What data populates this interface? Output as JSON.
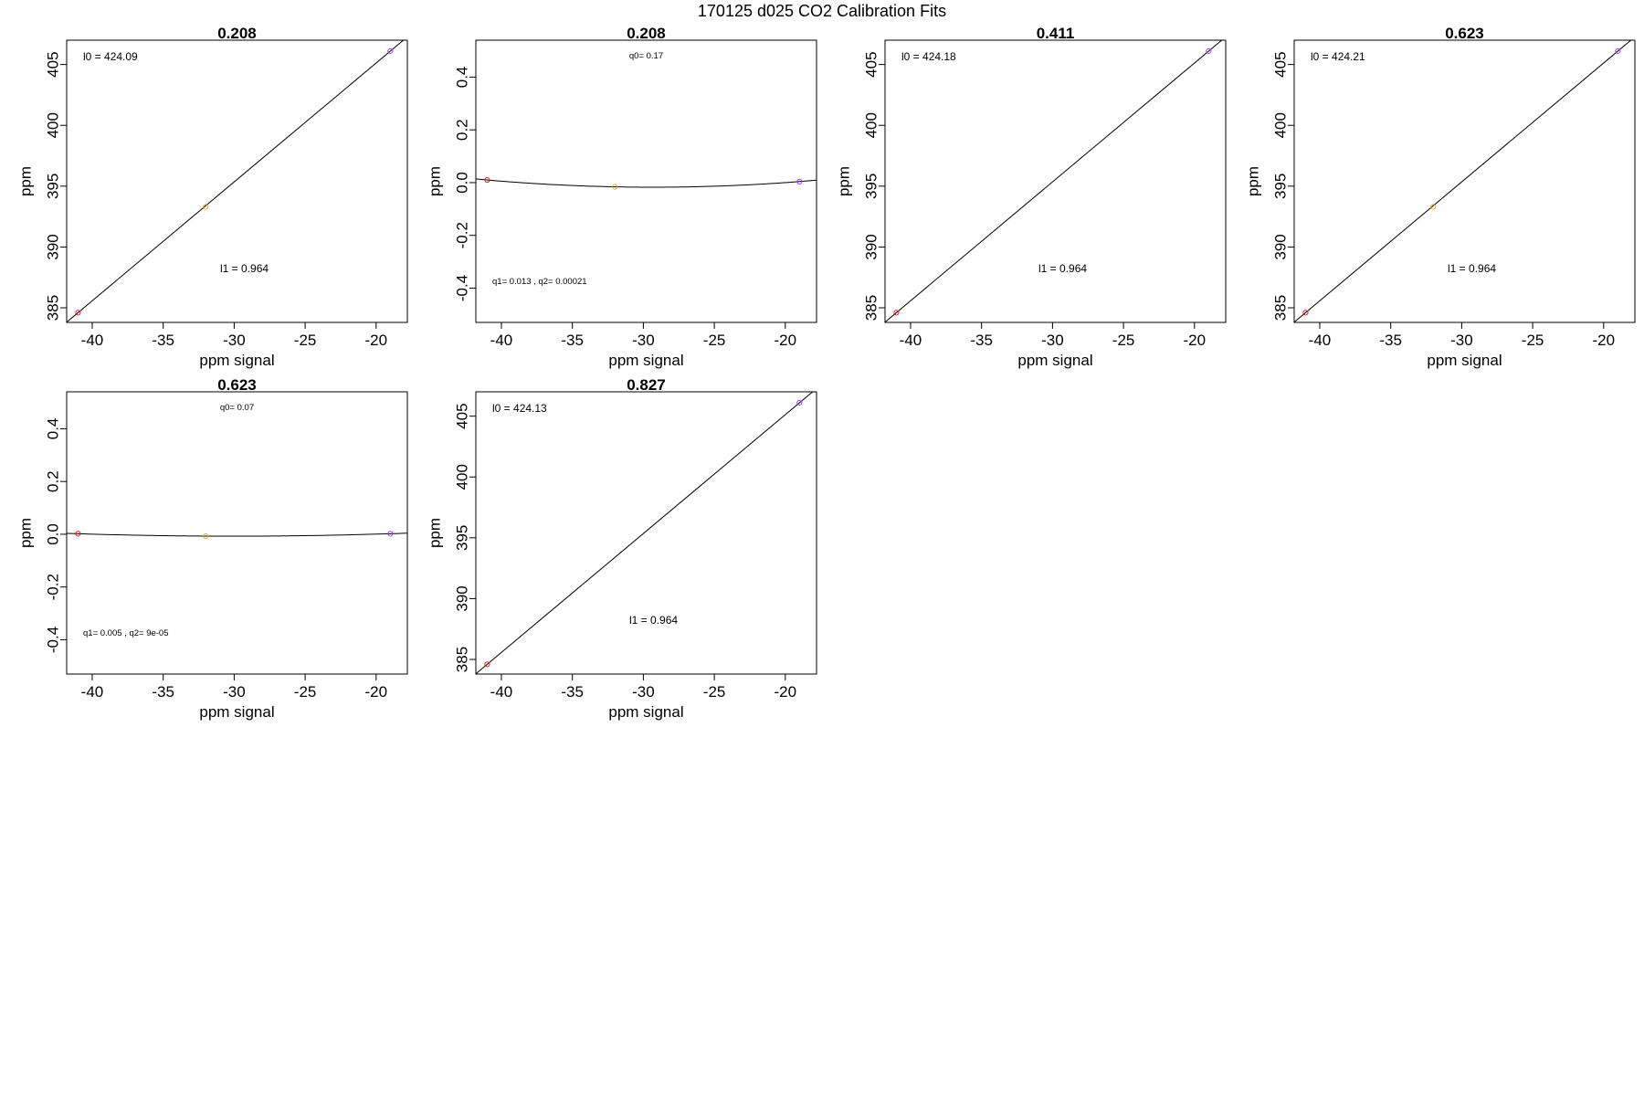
{
  "main_title": "170125   d025   CO2 Calibration Fits",
  "colors": {
    "low": "#e0191b",
    "mid": "#f5a623",
    "high": "#9b3dff",
    "line": "#000000"
  },
  "chart_data": [
    {
      "type": "scatter",
      "fit": "linear",
      "title": "0.208",
      "xlabel": "ppm signal",
      "ylabel": "ppm",
      "xlim": [
        -41.8,
        -17.8
      ],
      "ylim": [
        383.8,
        407.0
      ],
      "xticks": [
        -40,
        -35,
        -30,
        -25,
        -20
      ],
      "yticks": [
        385,
        390,
        395,
        400,
        405
      ],
      "points": [
        {
          "x": -41,
          "y": 384.6,
          "color": "low"
        },
        {
          "x": -32,
          "y": 393.3,
          "color": "mid"
        },
        {
          "x": -19,
          "y": 406.1,
          "color": "high"
        }
      ],
      "annotations": [
        {
          "text": "l0 =  424.09",
          "pos": "top-left"
        },
        {
          "text": "l1 =  0.964",
          "pos": "lower-center"
        }
      ]
    },
    {
      "type": "scatter",
      "fit": "quadratic",
      "title": "0.208",
      "xlabel": "ppm signal",
      "ylabel": "ppm",
      "xlim": [
        -41.8,
        -17.8
      ],
      "ylim": [
        -0.53,
        0.54
      ],
      "xticks": [
        -40,
        -35,
        -30,
        -25,
        -20
      ],
      "yticks": [
        -0.4,
        -0.2,
        0.0,
        0.2,
        0.4
      ],
      "yticklabels": [
        "-0.4",
        "-0.2",
        "0.0",
        "0.2",
        "0.4"
      ],
      "points": [
        {
          "x": -41,
          "y": 0.01,
          "color": "low"
        },
        {
          "x": -32,
          "y": -0.016,
          "color": "mid"
        },
        {
          "x": -19,
          "y": 0.004,
          "color": "high"
        }
      ],
      "annotations": [
        {
          "text": "q0= 0.17",
          "pos": "top-center"
        },
        {
          "text": "q1= 0.013 , q2= 0.00021",
          "pos": "bottom-left"
        }
      ]
    },
    {
      "type": "scatter",
      "fit": "linear",
      "title": "0.411",
      "xlabel": "ppm signal",
      "ylabel": "ppm",
      "xlim": [
        -41.8,
        -17.8
      ],
      "ylim": [
        383.8,
        407.0
      ],
      "xticks": [
        -40,
        -35,
        -30,
        -25,
        -20
      ],
      "yticks": [
        385,
        390,
        395,
        400,
        405
      ],
      "points": [
        {
          "x": -41,
          "y": 384.6,
          "color": "low"
        },
        {
          "x": -19,
          "y": 406.1,
          "color": "high"
        }
      ],
      "annotations": [
        {
          "text": "l0 =  424.18",
          "pos": "top-left"
        },
        {
          "text": "l1 =  0.964",
          "pos": "lower-center"
        }
      ]
    },
    {
      "type": "scatter",
      "fit": "linear",
      "title": "0.623",
      "xlabel": "ppm signal",
      "ylabel": "ppm",
      "xlim": [
        -41.8,
        -17.8
      ],
      "ylim": [
        383.8,
        407.0
      ],
      "xticks": [
        -40,
        -35,
        -30,
        -25,
        -20
      ],
      "yticks": [
        385,
        390,
        395,
        400,
        405
      ],
      "points": [
        {
          "x": -41,
          "y": 384.6,
          "color": "low"
        },
        {
          "x": -32,
          "y": 393.3,
          "color": "mid"
        },
        {
          "x": -19,
          "y": 406.1,
          "color": "high"
        }
      ],
      "annotations": [
        {
          "text": "l0 =  424.21",
          "pos": "top-left"
        },
        {
          "text": "l1 =  0.964",
          "pos": "lower-center"
        }
      ]
    },
    {
      "type": "scatter",
      "fit": "quadratic",
      "title": "0.623",
      "xlabel": "ppm signal",
      "ylabel": "ppm",
      "xlim": [
        -41.8,
        -17.8
      ],
      "ylim": [
        -0.53,
        0.54
      ],
      "xticks": [
        -40,
        -35,
        -30,
        -25,
        -20
      ],
      "yticks": [
        -0.4,
        -0.2,
        0.0,
        0.2,
        0.4
      ],
      "yticklabels": [
        "-0.4",
        "-0.2",
        "0.0",
        "0.2",
        "0.4"
      ],
      "points": [
        {
          "x": -41,
          "y": 0.002,
          "color": "low"
        },
        {
          "x": -32,
          "y": -0.007,
          "color": "mid"
        },
        {
          "x": -19,
          "y": 0.002,
          "color": "high"
        }
      ],
      "annotations": [
        {
          "text": "q0= 0.07",
          "pos": "top-center"
        },
        {
          "text": "q1= 0.005 , q2= 9e-05",
          "pos": "bottom-left"
        }
      ]
    },
    {
      "type": "scatter",
      "fit": "linear",
      "title": "0.827",
      "xlabel": "ppm signal",
      "ylabel": "ppm",
      "xlim": [
        -41.8,
        -17.8
      ],
      "ylim": [
        383.8,
        407.0
      ],
      "xticks": [
        -40,
        -35,
        -30,
        -25,
        -20
      ],
      "yticks": [
        385,
        390,
        395,
        400,
        405
      ],
      "points": [
        {
          "x": -41,
          "y": 384.6,
          "color": "low"
        },
        {
          "x": -19,
          "y": 406.1,
          "color": "high"
        }
      ],
      "annotations": [
        {
          "text": "l0 =  424.13",
          "pos": "top-left"
        },
        {
          "text": "l1 =  0.964",
          "pos": "lower-center"
        }
      ]
    }
  ]
}
